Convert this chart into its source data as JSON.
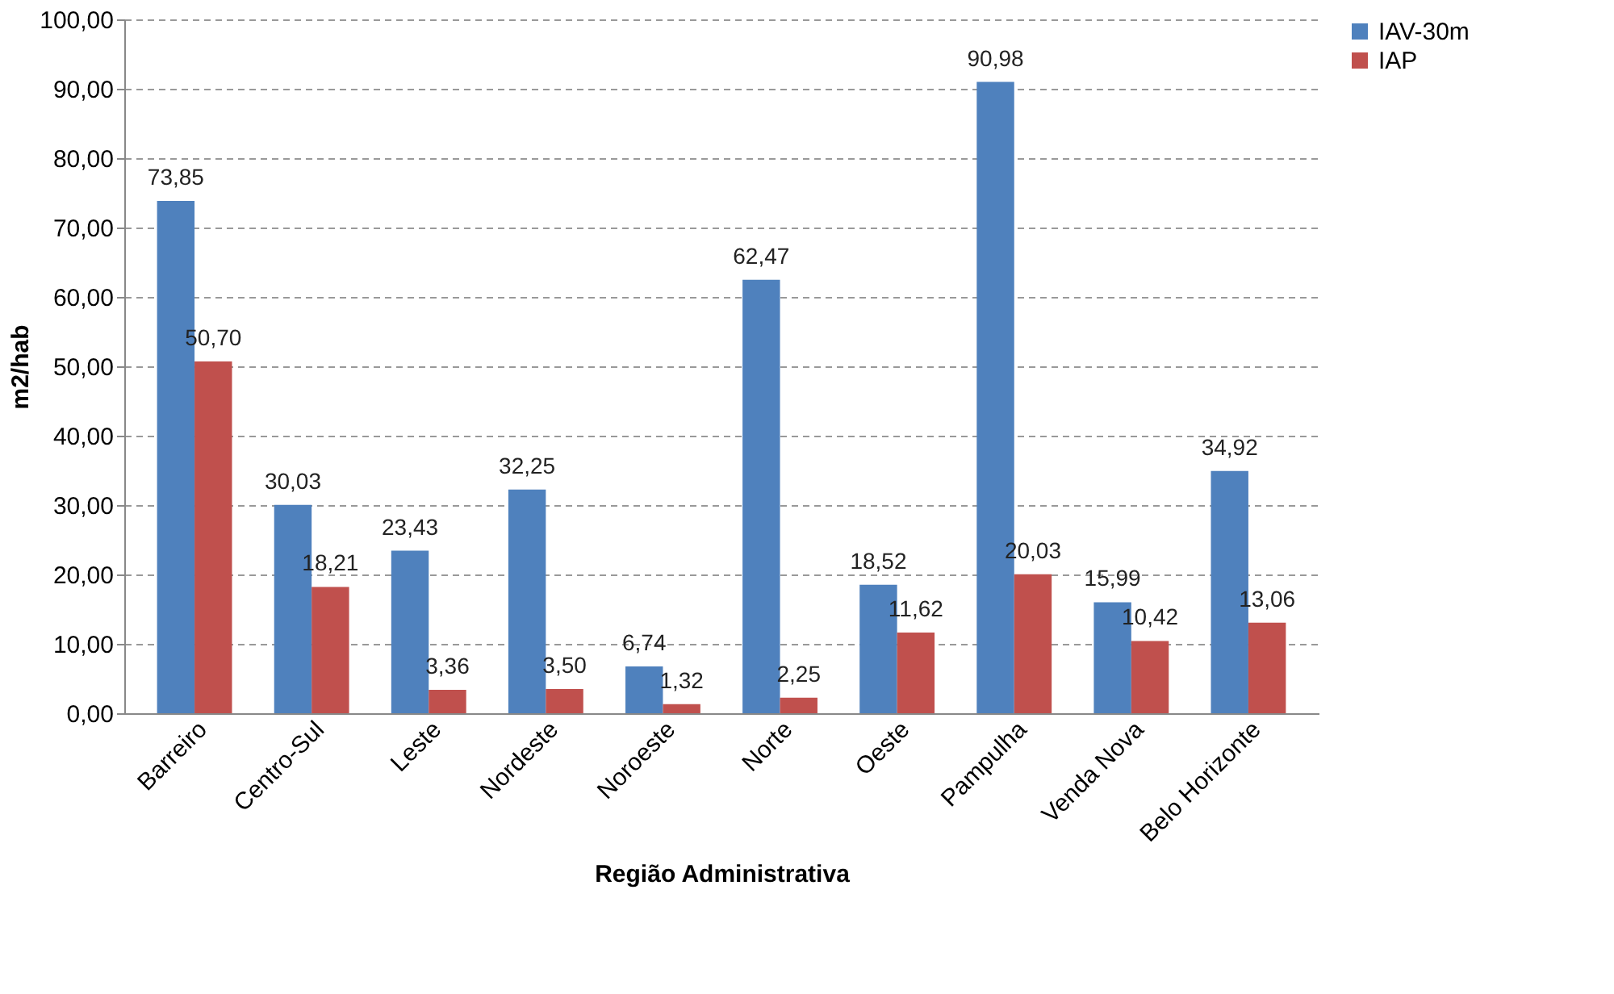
{
  "chart_data": {
    "type": "bar",
    "xlabel": "Região Administrativa",
    "ylabel": "m2/hab",
    "categories": [
      "Barreiro",
      "Centro-Sul",
      "Leste",
      "Nordeste",
      "Noroeste",
      "Norte",
      "Oeste",
      "Pampulha",
      "Venda Nova",
      "Belo Horizonte"
    ],
    "series": [
      {
        "name": "IAV-30m",
        "color": "#4f81bd",
        "values": [
          73.85,
          30.03,
          23.43,
          32.25,
          6.74,
          62.47,
          18.52,
          90.98,
          15.99,
          34.92
        ],
        "value_labels": [
          "73,85",
          "30,03",
          "23,43",
          "32,25",
          "6,74",
          "62,47",
          "18,52",
          "90,98",
          "15,99",
          "34,92"
        ]
      },
      {
        "name": "IAP",
        "color": "#c0504d",
        "values": [
          50.7,
          18.21,
          3.36,
          3.5,
          1.32,
          2.25,
          11.62,
          20.03,
          10.42,
          13.06
        ],
        "value_labels": [
          "50,70",
          "18,21",
          "3,36",
          "3,50",
          "1,32",
          "2,25",
          "11,62",
          "20,03",
          "10,42",
          "13,06"
        ]
      }
    ],
    "ylim": [
      0,
      100
    ],
    "yticks": [
      {
        "value": 0,
        "label": "0,00"
      },
      {
        "value": 10,
        "label": "10,00"
      },
      {
        "value": 20,
        "label": "20,00"
      },
      {
        "value": 30,
        "label": "30,00"
      },
      {
        "value": 40,
        "label": "40,00"
      },
      {
        "value": 50,
        "label": "50,00"
      },
      {
        "value": 60,
        "label": "60,00"
      },
      {
        "value": 70,
        "label": "70,00"
      },
      {
        "value": 80,
        "label": "80,00"
      },
      {
        "value": 90,
        "label": "90,00"
      },
      {
        "value": 100,
        "label": "100,00"
      }
    ],
    "grid": "y",
    "legend": "right"
  }
}
